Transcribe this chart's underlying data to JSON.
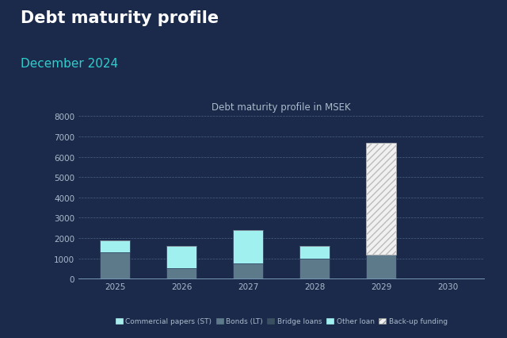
{
  "title": "Debt maturity profile",
  "subtitle": "December 2024",
  "chart_title": "Debt maturity profile in MSEK",
  "background_color": "#1b2a4a",
  "title_color": "#ffffff",
  "subtitle_color": "#2dcfcf",
  "chart_bg_color": "#1b2a4a",
  "years": [
    "2025",
    "2026",
    "2027",
    "2028",
    "2029",
    "2030"
  ],
  "series": {
    "Commercial papers (ST)": {
      "values": [
        0,
        0,
        0,
        0,
        0,
        0
      ],
      "color": "#a8ecec"
    },
    "Bonds (LT)": {
      "values": [
        1300,
        500,
        750,
        1000,
        1200,
        0
      ],
      "color": "#5d7a8a"
    },
    "Bridge loans": {
      "values": [
        0,
        0,
        0,
        0,
        0,
        0
      ],
      "color": "#3a5060"
    },
    "Other loan": {
      "values": [
        600,
        1100,
        1650,
        600,
        0,
        0
      ],
      "color": "#a0f0f0"
    },
    "Back-up funding": {
      "values": [
        0,
        0,
        0,
        0,
        5500,
        0
      ],
      "color": "#f0f0f0",
      "hatch": "////"
    }
  },
  "ylim": [
    0,
    8000
  ],
  "yticks": [
    0,
    1000,
    2000,
    3000,
    4000,
    5000,
    6000,
    7000,
    8000
  ],
  "grid_color": "#7a9ab5",
  "axis_color": "#7a9ab5",
  "tick_color": "#aabbcc",
  "text_color": "#aabbcc",
  "title_fontsize": 15,
  "subtitle_fontsize": 11,
  "chart_title_fontsize": 8.5,
  "tick_fontsize": 7.5,
  "legend_fontsize": 6.5
}
